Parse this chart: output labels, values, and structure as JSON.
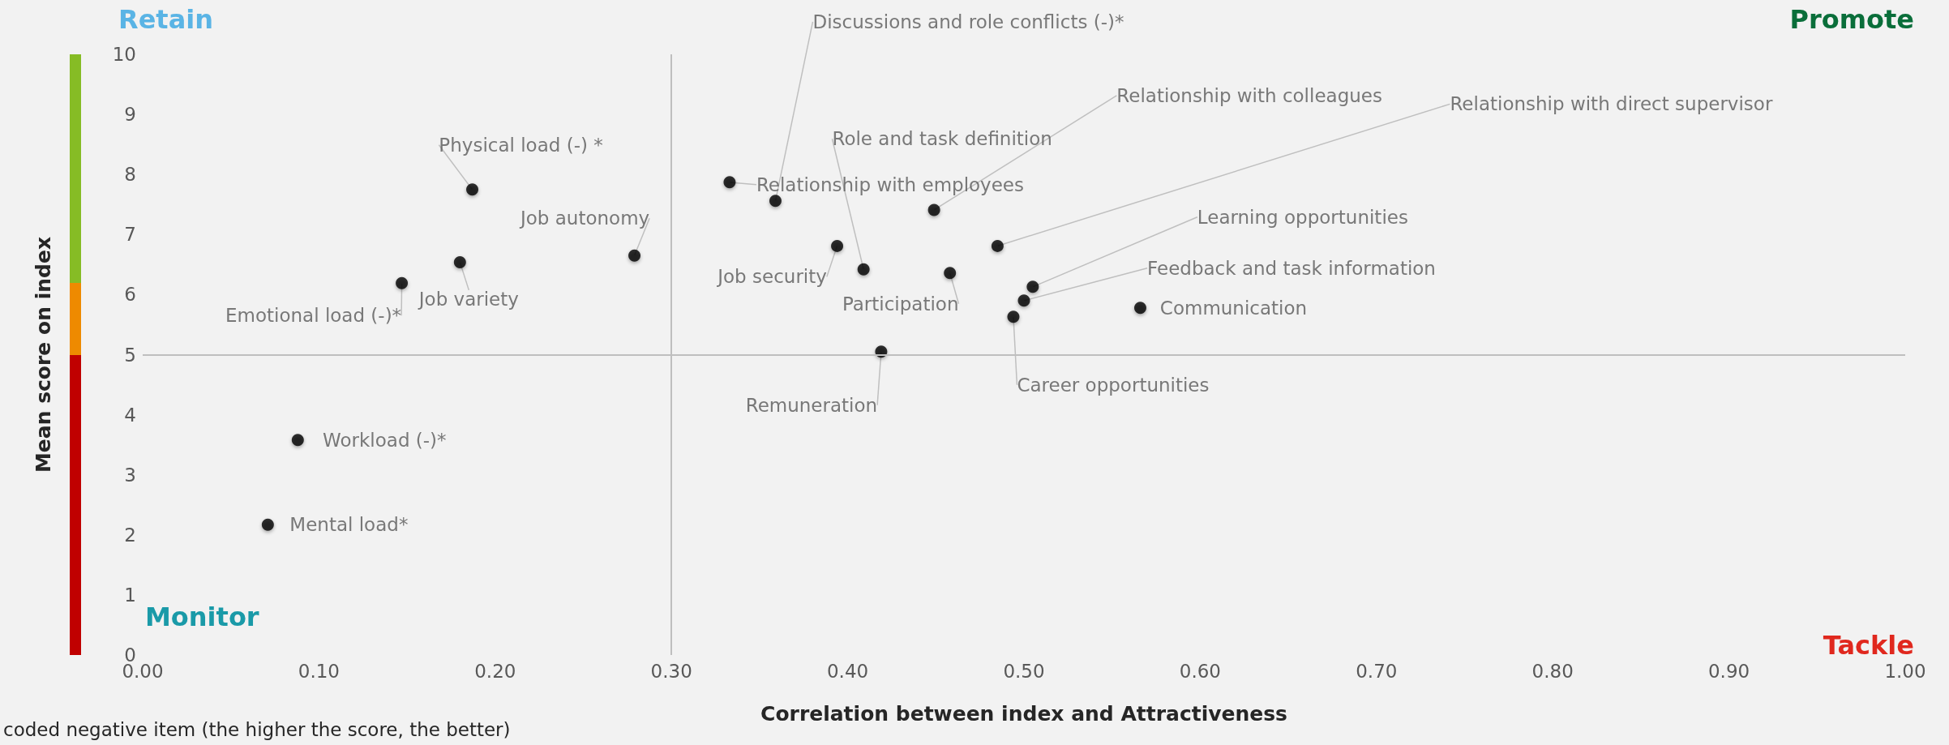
{
  "chart_data": {
    "type": "scatter",
    "xlabel": "Correlation between index and Attractiveness",
    "ylabel": "Mean score on index",
    "x": [
      0.187,
      0.18,
      0.147,
      0.279,
      0.088,
      0.071,
      0.359,
      0.333,
      0.394,
      0.409,
      0.449,
      0.458,
      0.485,
      0.505,
      0.5,
      0.494,
      0.566,
      0.419
    ],
    "series": [
      {
        "color": "#000000",
        "values": [
          7.75,
          6.54,
          6.19,
          6.65,
          3.58,
          2.17,
          7.56,
          7.87,
          6.81,
          6.42,
          7.41,
          6.36,
          6.81,
          6.13,
          5.9,
          5.63,
          5.78,
          5.05
        ]
      }
    ],
    "marker": "circle",
    "xlim": [
      0,
      1
    ],
    "ylim": [
      0,
      10
    ],
    "xticks": [
      {
        "value": 0,
        "label": "0.00"
      },
      {
        "value": 0.1,
        "label": "0.10"
      },
      {
        "value": 0.2,
        "label": "0.20"
      },
      {
        "value": 0.3,
        "label": "0.30"
      },
      {
        "value": 0.4,
        "label": "0.40"
      },
      {
        "value": 0.5,
        "label": "0.50"
      },
      {
        "value": 0.6,
        "label": "0.60"
      },
      {
        "value": 0.7,
        "label": "0.70"
      },
      {
        "value": 0.8,
        "label": "0.80"
      },
      {
        "value": 0.9,
        "label": "0.90"
      },
      {
        "value": 1,
        "label": "1.00"
      }
    ],
    "yticks": [
      0,
      1,
      2,
      3,
      4,
      5,
      6,
      7,
      8,
      9,
      10
    ],
    "grid": false,
    "ref_lines": [
      {
        "axis": "x",
        "value": 0.3,
        "color": "#bfbfbf"
      },
      {
        "axis": "y",
        "value": 5,
        "color": "#bfbfbf"
      }
    ],
    "annotations": [
      {
        "text": "Physical load (-) *",
        "x": 0.187,
        "y": 7.75
      },
      {
        "text": "Job variety",
        "x": 0.18,
        "y": 6.54
      },
      {
        "text": "Emotional load (-)*",
        "x": 0.147,
        "y": 6.19
      },
      {
        "text": "Job autonomy",
        "x": 0.279,
        "y": 6.65
      },
      {
        "text": "Workload (-)*",
        "x": 0.088,
        "y": 3.58
      },
      {
        "text": "Mental load*",
        "x": 0.071,
        "y": 2.17
      },
      {
        "text": "Discussions and role conflicts (-)*",
        "x": 0.359,
        "y": 7.56
      },
      {
        "text": "Relationship with employees",
        "x": 0.333,
        "y": 7.87
      },
      {
        "text": "Job security",
        "x": 0.394,
        "y": 6.81
      },
      {
        "text": "Role and task definition",
        "x": 0.409,
        "y": 6.42
      },
      {
        "text": "Relationship with colleagues",
        "x": 0.449,
        "y": 7.41
      },
      {
        "text": "Participation",
        "x": 0.458,
        "y": 6.36
      },
      {
        "text": "Relationship with direct supervisor",
        "x": 0.485,
        "y": 6.81
      },
      {
        "text": "Learning opportunities",
        "x": 0.505,
        "y": 6.13
      },
      {
        "text": "Feedback and task information",
        "x": 0.5,
        "y": 5.9
      },
      {
        "text": "Career opportunities",
        "x": 0.494,
        "y": 5.63
      },
      {
        "text": "Communication",
        "x": 0.566,
        "y": 5.78
      },
      {
        "text": "Remuneration",
        "x": 0.419,
        "y": 5.05
      },
      "Retain",
      "Promote",
      "Monitor",
      "Tackle",
      "coded negative item (the higher the score, the better)"
    ]
  }
}
